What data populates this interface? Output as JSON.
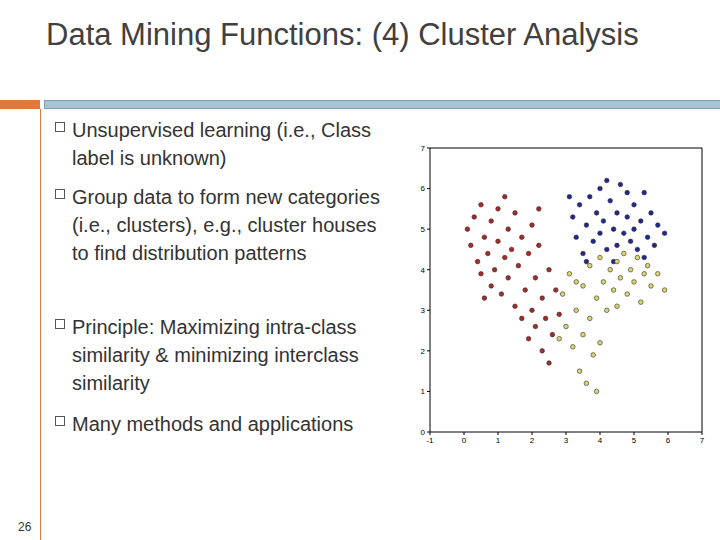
{
  "title": "Data Mining Functions: (4) Cluster Analysis",
  "bullets": [
    "Unsupervised learning (i.e., Class label is unknown)",
    "Group data to form new categories (i.e., clusters), e.g., cluster houses to find distribution patterns",
    "Principle: Maximizing intra-class similarity & minimizing interclass similarity",
    "Many methods and applications"
  ],
  "page_number": 26,
  "chart_data": {
    "type": "scatter",
    "xlim": [
      -1,
      7
    ],
    "xticks": [
      -1,
      0,
      1,
      2,
      3,
      4,
      5,
      6,
      7
    ],
    "ylim": [
      0,
      7
    ],
    "yticks": [
      0,
      1,
      2,
      3,
      4,
      5,
      6,
      7
    ],
    "marker": "o",
    "series": [
      {
        "color": "#a52a2a",
        "x": [
          0.1,
          0.2,
          0.3,
          0.4,
          0.5,
          0.5,
          0.6,
          0.7,
          0.8,
          0.8,
          0.9,
          1.0,
          1.0,
          1.1,
          1.2,
          1.3,
          1.3,
          1.4,
          1.5,
          1.5,
          1.6,
          1.7,
          1.7,
          1.8,
          1.9,
          1.9,
          2.0,
          2.0,
          2.1,
          2.1,
          2.2,
          2.3,
          2.3,
          2.4,
          2.5,
          2.5,
          2.6,
          2.7,
          2.8,
          0.6,
          1.2,
          2.2
        ],
        "y": [
          5.0,
          4.6,
          5.3,
          4.2,
          5.6,
          3.9,
          4.8,
          4.4,
          5.2,
          3.6,
          4.0,
          5.5,
          4.7,
          3.4,
          4.3,
          5.0,
          3.8,
          4.5,
          5.4,
          3.1,
          4.1,
          4.8,
          2.8,
          3.5,
          4.4,
          2.3,
          5.1,
          3.0,
          3.8,
          2.6,
          4.6,
          2.0,
          3.3,
          2.8,
          4.0,
          1.7,
          2.4,
          3.5,
          2.9,
          3.3,
          5.8,
          5.5
        ]
      },
      {
        "color": "#1c2a8e",
        "x": [
          3.2,
          3.3,
          3.4,
          3.5,
          3.6,
          3.7,
          3.8,
          3.9,
          4.0,
          4.0,
          4.1,
          4.2,
          4.3,
          4.4,
          4.5,
          4.5,
          4.6,
          4.7,
          4.8,
          4.9,
          5.0,
          5.0,
          5.1,
          5.2,
          5.3,
          5.4,
          5.5,
          5.6,
          5.7,
          5.9,
          3.6,
          4.2,
          4.8,
          5.3,
          3.1,
          4.4
        ],
        "y": [
          5.3,
          4.8,
          5.6,
          4.4,
          5.1,
          5.8,
          4.7,
          5.4,
          4.9,
          6.0,
          5.2,
          4.5,
          5.7,
          5.0,
          4.6,
          5.4,
          6.1,
          4.9,
          5.3,
          4.7,
          5.6,
          5.0,
          4.5,
          5.2,
          5.9,
          4.8,
          5.4,
          4.6,
          5.1,
          4.9,
          4.2,
          6.2,
          5.9,
          4.3,
          5.8,
          4.2
        ]
      },
      {
        "color": "#d6d670",
        "x": [
          2.9,
          3.0,
          3.1,
          3.2,
          3.3,
          3.4,
          3.5,
          3.5,
          3.6,
          3.7,
          3.7,
          3.8,
          3.9,
          4.0,
          4.0,
          4.1,
          4.2,
          4.3,
          4.4,
          4.5,
          4.5,
          4.6,
          4.7,
          4.8,
          4.9,
          5.0,
          5.1,
          5.2,
          5.3,
          5.4,
          5.5,
          5.7,
          5.9,
          3.3,
          2.8,
          3.9
        ],
        "y": [
          3.4,
          2.6,
          3.9,
          2.1,
          3.0,
          1.5,
          3.6,
          2.4,
          1.2,
          4.1,
          2.8,
          1.9,
          3.3,
          4.3,
          2.2,
          3.7,
          3.0,
          4.0,
          3.5,
          4.2,
          3.1,
          3.8,
          4.4,
          3.4,
          4.0,
          3.7,
          4.3,
          3.2,
          3.9,
          4.1,
          3.6,
          3.9,
          3.5,
          3.7,
          2.3,
          1.0
        ]
      }
    ]
  }
}
